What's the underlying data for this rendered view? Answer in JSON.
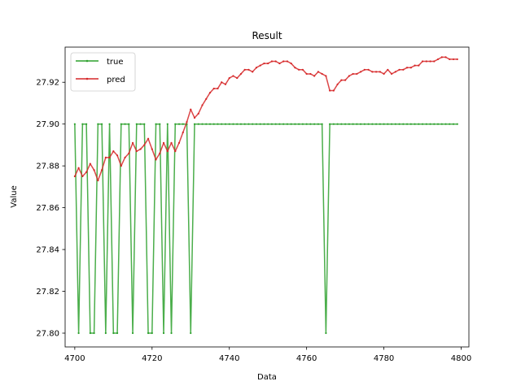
{
  "chart_data": {
    "type": "line",
    "title": "Result",
    "xlabel": "Data",
    "ylabel": "Value",
    "xlim": [
      4697.5,
      4802
    ],
    "ylim": [
      27.7934,
      27.9368
    ],
    "xticks": [
      4700,
      4720,
      4740,
      4760,
      4780,
      4800
    ],
    "yticks": [
      27.8,
      27.82,
      27.84,
      27.86,
      27.88,
      27.9,
      27.92
    ],
    "grid": false,
    "legend_position": "top-left",
    "x": [
      4700,
      4701,
      4702,
      4703,
      4704,
      4705,
      4706,
      4707,
      4708,
      4709,
      4710,
      4711,
      4712,
      4713,
      4714,
      4715,
      4716,
      4717,
      4718,
      4719,
      4720,
      4721,
      4722,
      4723,
      4724,
      4725,
      4726,
      4727,
      4728,
      4729,
      4730,
      4731,
      4732,
      4733,
      4734,
      4735,
      4736,
      4737,
      4738,
      4739,
      4740,
      4741,
      4742,
      4743,
      4744,
      4745,
      4746,
      4747,
      4748,
      4749,
      4750,
      4751,
      4752,
      4753,
      4754,
      4755,
      4756,
      4757,
      4758,
      4759,
      4760,
      4761,
      4762,
      4763,
      4764,
      4765,
      4766,
      4767,
      4768,
      4769,
      4770,
      4771,
      4772,
      4773,
      4774,
      4775,
      4776,
      4777,
      4778,
      4779,
      4780,
      4781,
      4782,
      4783,
      4784,
      4785,
      4786,
      4787,
      4788,
      4789,
      4790,
      4791,
      4792,
      4793,
      4794,
      4795,
      4796,
      4797,
      4798,
      4799
    ],
    "series": [
      {
        "name": "true",
        "color": "#2ca02c",
        "values": [
          27.9,
          27.8,
          27.9,
          27.9,
          27.8,
          27.8,
          27.9,
          27.9,
          27.8,
          27.9,
          27.8,
          27.8,
          27.9,
          27.9,
          27.9,
          27.8,
          27.9,
          27.9,
          27.9,
          27.8,
          27.8,
          27.9,
          27.9,
          27.8,
          27.9,
          27.8,
          27.9,
          27.9,
          27.9,
          27.9,
          27.8,
          27.9,
          27.9,
          27.9,
          27.9,
          27.9,
          27.9,
          27.9,
          27.9,
          27.9,
          27.9,
          27.9,
          27.9,
          27.9,
          27.9,
          27.9,
          27.9,
          27.9,
          27.9,
          27.9,
          27.9,
          27.9,
          27.9,
          27.9,
          27.9,
          27.9,
          27.9,
          27.9,
          27.9,
          27.9,
          27.9,
          27.9,
          27.9,
          27.9,
          27.9,
          27.8,
          27.9,
          27.9,
          27.9,
          27.9,
          27.9,
          27.9,
          27.9,
          27.9,
          27.9,
          27.9,
          27.9,
          27.9,
          27.9,
          27.9,
          27.9,
          27.9,
          27.9,
          27.9,
          27.9,
          27.9,
          27.9,
          27.9,
          27.9,
          27.9,
          27.9,
          27.9,
          27.9,
          27.9,
          27.9,
          27.9,
          27.9,
          27.9,
          27.9,
          27.9
        ]
      },
      {
        "name": "pred",
        "color": "#d62728",
        "values": [
          27.875,
          27.879,
          27.875,
          27.877,
          27.881,
          27.878,
          27.873,
          27.878,
          27.884,
          27.884,
          27.887,
          27.885,
          27.88,
          27.884,
          27.886,
          27.891,
          27.887,
          27.888,
          27.89,
          27.893,
          27.888,
          27.883,
          27.886,
          27.891,
          27.887,
          27.891,
          27.887,
          27.891,
          27.896,
          27.901,
          27.907,
          27.903,
          27.905,
          27.909,
          27.912,
          27.915,
          27.917,
          27.917,
          27.92,
          27.919,
          27.922,
          27.923,
          27.922,
          27.924,
          27.926,
          27.926,
          27.925,
          27.927,
          27.928,
          27.929,
          27.929,
          27.93,
          27.93,
          27.929,
          27.93,
          27.93,
          27.929,
          27.927,
          27.926,
          27.926,
          27.924,
          27.924,
          27.923,
          27.925,
          27.924,
          27.923,
          27.916,
          27.916,
          27.919,
          27.921,
          27.921,
          27.923,
          27.924,
          27.924,
          27.925,
          27.926,
          27.926,
          27.925,
          27.925,
          27.925,
          27.924,
          27.926,
          27.924,
          27.925,
          27.926,
          27.926,
          27.927,
          27.927,
          27.928,
          27.928,
          27.93,
          27.93,
          27.93,
          27.93,
          27.931,
          27.932,
          27.932,
          27.931,
          27.931,
          27.931
        ]
      }
    ]
  }
}
